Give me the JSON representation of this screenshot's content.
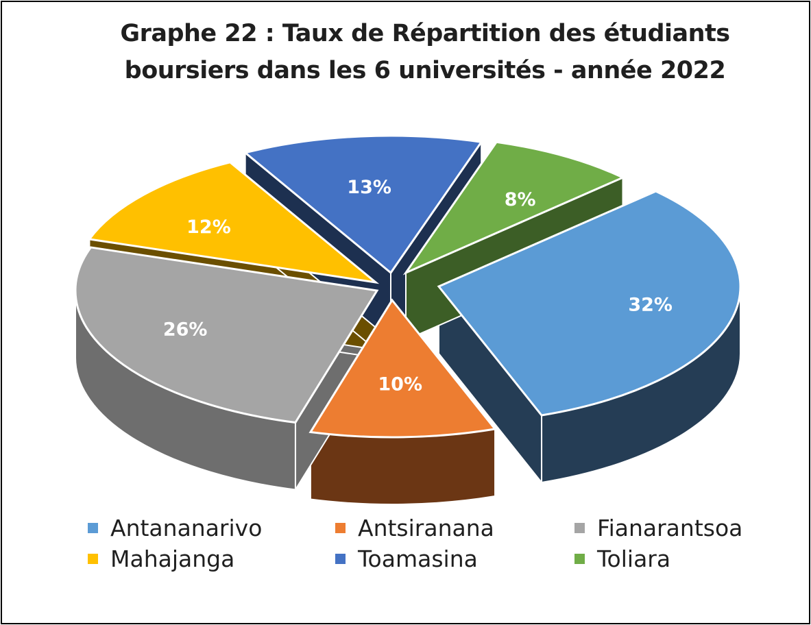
{
  "title": "Graphe 22 : Taux de Répartition des étudiants\nboursiers dans les 6 universités - année 2022",
  "chart_data": {
    "type": "pie",
    "title": "Graphe 22 : Taux de Répartition des étudiants boursiers dans les 6 universités - année 2022",
    "style": "3d-exploded",
    "legend_position": "bottom",
    "categories": [
      "Antananarivo",
      "Antsiranana",
      "Fianarantsoa",
      "Mahajanga",
      "Toamasina",
      "Toliara"
    ],
    "values": [
      32,
      10,
      26,
      12,
      13,
      8
    ],
    "data_labels": [
      "32%",
      "10%",
      "26%",
      "12%",
      "13%",
      "8%"
    ],
    "colors": [
      "#5b9bd5",
      "#ed7d31",
      "#a5a5a5",
      "#ffc000",
      "#4472c4",
      "#70ad47"
    ],
    "side_colors": [
      "#253d55",
      "#6b3614",
      "#6e6e6e",
      "#6b4f00",
      "#1d3050",
      "#3c5e26"
    ]
  }
}
